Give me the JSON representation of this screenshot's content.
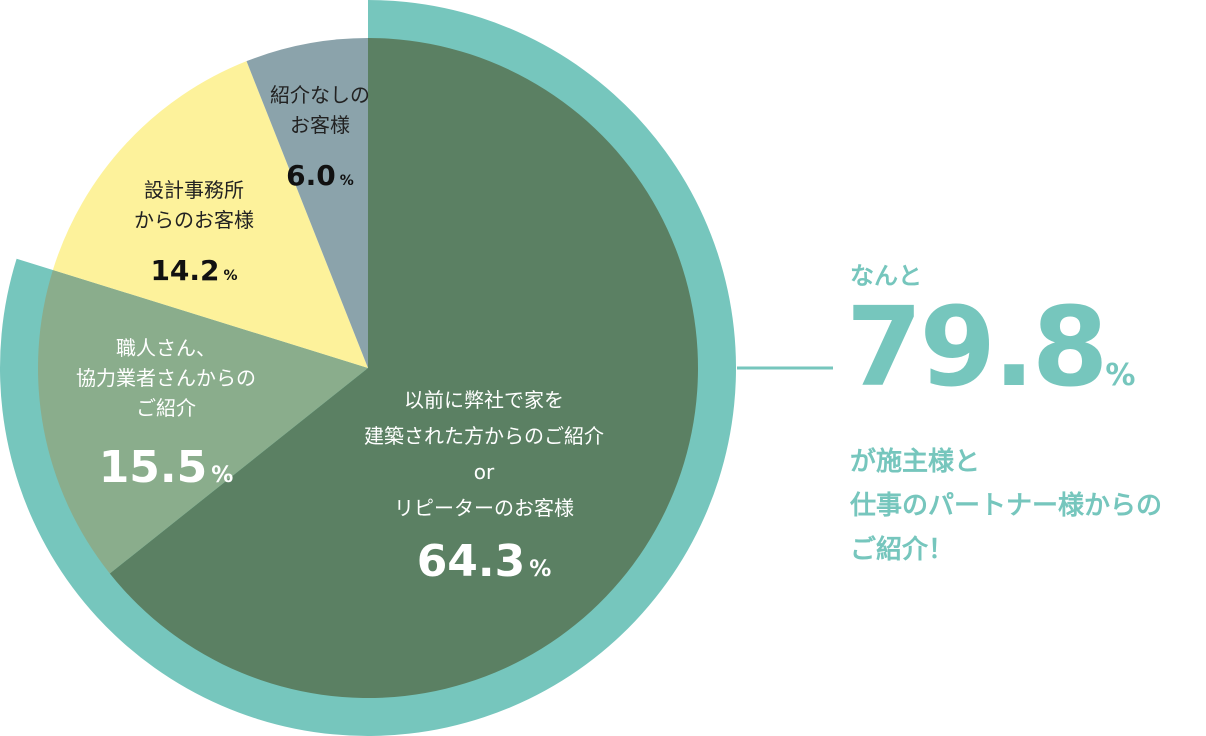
{
  "chart_data": {
    "type": "pie",
    "slices": [
      {
        "label_lines": [
          "以前に弊社で家を",
          "建築された方からのご紹介",
          "or",
          "リピーターのお客様"
        ],
        "value": 64.3,
        "unit": "%",
        "color": "#5b8063"
      },
      {
        "label_lines": [
          "職人さん、",
          "協力業者さんからの",
          "ご紹介"
        ],
        "value": 15.5,
        "unit": "%",
        "color": "#8aad8c"
      },
      {
        "label_lines": [
          "設計事務所",
          "からのお客様"
        ],
        "value": 14.2,
        "unit": "%",
        "color": "#fdf29b"
      },
      {
        "label_lines": [
          "紹介なしの",
          "お客様"
        ],
        "value": 6.0,
        "unit": "%",
        "color": "#8ba3ab"
      }
    ],
    "highlight": {
      "value": 79.8,
      "unit": "%",
      "color": "#76c6bd"
    }
  },
  "callout": {
    "lead": "なんと",
    "value": "79.8",
    "unit": "%",
    "lines": [
      "が施主様と",
      "仕事のパートナー様からの",
      "ご紹介！"
    ]
  }
}
